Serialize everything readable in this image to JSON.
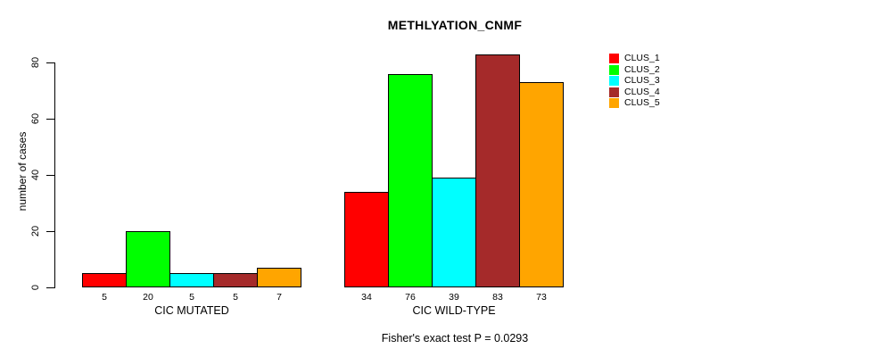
{
  "chart_data": {
    "type": "bar",
    "title": "METHLYATION_CNMF",
    "ylabel": "number of cases",
    "xlabel": "",
    "annotation": "Fisher's exact test P = 0.0293",
    "groups": [
      {
        "label": "CIC MUTATED",
        "values": [
          5,
          20,
          5,
          5,
          7
        ]
      },
      {
        "label": "CIC WILD-TYPE",
        "values": [
          34,
          76,
          39,
          83,
          73
        ]
      }
    ],
    "series_names": [
      "CLUS_1",
      "CLUS_2",
      "CLUS_3",
      "CLUS_4",
      "CLUS_5"
    ],
    "colors": [
      "#FF0000",
      "#00FF00",
      "#00FFFF",
      "#A52A2A",
      "#FFA500"
    ],
    "yticks": [
      0,
      20,
      40,
      60,
      80
    ],
    "ylim": [
      0,
      80
    ],
    "grid": false,
    "legend_position": "right",
    "bar_value_labels": true
  }
}
